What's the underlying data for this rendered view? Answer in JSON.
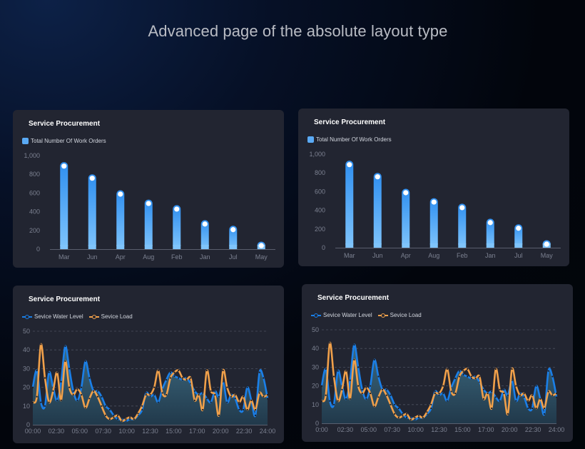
{
  "page": {
    "title": "Advanced page of the absolute layout type"
  },
  "panels": [
    {
      "title": "Service Procurement",
      "legend": [
        "Total Number Of Work Orders"
      ],
      "chart_data": {
        "type": "bar",
        "categories": [
          "Mar",
          "Jun",
          "Apr",
          "Aug",
          "Feb",
          "Jan",
          "Jul",
          "May"
        ],
        "series": [
          {
            "name": "Total Number Of Work Orders",
            "values": [
              930,
              800,
              630,
              530,
              470,
              310,
              250,
              80
            ]
          }
        ],
        "ylim": [
          0,
          1000
        ],
        "yticks": [
          "0",
          "200",
          "400",
          "600",
          "800",
          "1,000"
        ],
        "colors": {
          "bar_top": "#2f8ff0",
          "bar_bottom": "#7fc4fb",
          "marker": "#ffffff"
        }
      }
    },
    {
      "title": "Service Procurement",
      "legend": [
        "Total Number Of Work Orders"
      ],
      "chart_data": {
        "type": "bar",
        "categories": [
          "Mar",
          "Jun",
          "Apr",
          "Aug",
          "Feb",
          "Jan",
          "Jul",
          "May"
        ],
        "series": [
          {
            "name": "Total Number Of Work Orders",
            "values": [
              930,
              800,
              630,
              530,
              470,
              310,
              250,
              80
            ]
          }
        ],
        "ylim": [
          0,
          1000
        ],
        "yticks": [
          "0",
          "200",
          "400",
          "600",
          "800",
          "1,000"
        ],
        "colors": {
          "bar_top": "#2f8ff0",
          "bar_bottom": "#7fc4fb",
          "marker": "#ffffff"
        }
      }
    },
    {
      "title": "Service Procurement",
      "legend": [
        "Sevice Water Level",
        "Sevice Load"
      ],
      "chart_data": {
        "type": "line",
        "xticks": [
          "00:00",
          "02:30",
          "05:00",
          "07:30",
          "10:00",
          "12:30",
          "15:00",
          "17:00",
          "20:00",
          "22:30",
          "24:00"
        ],
        "ylim": [
          0,
          50
        ],
        "yticks": [
          "0",
          "10",
          "20",
          "30",
          "40",
          "50"
        ],
        "series": [
          {
            "name": "Sevice Water Level",
            "color": "#1a7fe8",
            "area": true,
            "values": [
              20,
              29,
              12,
              10,
              28,
              20,
              13,
              23,
              42,
              30,
              18,
              13,
              20,
              34,
              25,
              18,
              18,
              15,
              10,
              8,
              5,
              3,
              3,
              2,
              3,
              3,
              5,
              8,
              17,
              15,
              16,
              12,
              19,
              24,
              28,
              26,
              25,
              24,
              25,
              22,
              18,
              16,
              17,
              14,
              12,
              18,
              15,
              23,
              12,
              16,
              14,
              8,
              8,
              20,
              13,
              5,
              28,
              25,
              14
            ]
          },
          {
            "name": "Sevice Load",
            "color": "#f0a04a",
            "area": false,
            "values": [
              12,
              15,
              43,
              25,
              12,
              18,
              28,
              13,
              34,
              20,
              16,
              19,
              16,
              9,
              14,
              18,
              15,
              10,
              5,
              3,
              4,
              5,
              2,
              3,
              4,
              3,
              6,
              10,
              16,
              16,
              20,
              29,
              17,
              16,
              25,
              28,
              29,
              25,
              24,
              25,
              13,
              16,
              8,
              29,
              18,
              16,
              5,
              29,
              20,
              15,
              16,
              12,
              15,
              8,
              13,
              8,
              17,
              15,
              16
            ]
          }
        ]
      }
    },
    {
      "title": "Service Procurement",
      "legend": [
        "Sevice Water Level",
        "Sevice Load"
      ],
      "chart_data": {
        "type": "line",
        "xticks": [
          "0:00",
          "02:30",
          "05:00",
          "07:30",
          "10:00",
          "12:30",
          "15:00",
          "17:00",
          "20:00",
          "22:30",
          "24:00"
        ],
        "ylim": [
          0,
          50
        ],
        "yticks": [
          "0",
          "10",
          "20",
          "30",
          "40",
          "50"
        ],
        "series": [
          {
            "name": "Sevice Water Level",
            "color": "#1a7fe8",
            "area": true,
            "values": [
              20,
              29,
              12,
              10,
              28,
              20,
              13,
              23,
              42,
              30,
              18,
              13,
              20,
              34,
              25,
              18,
              18,
              15,
              10,
              8,
              5,
              3,
              3,
              2,
              3,
              3,
              5,
              8,
              17,
              15,
              16,
              12,
              19,
              24,
              28,
              26,
              25,
              24,
              25,
              22,
              18,
              16,
              17,
              14,
              12,
              18,
              15,
              23,
              12,
              16,
              14,
              8,
              8,
              20,
              13,
              5,
              28,
              25,
              14
            ]
          },
          {
            "name": "Sevice Load",
            "color": "#f0a04a",
            "area": false,
            "values": [
              12,
              15,
              43,
              25,
              12,
              18,
              28,
              13,
              34,
              20,
              16,
              19,
              16,
              9,
              14,
              18,
              15,
              10,
              5,
              3,
              4,
              5,
              2,
              3,
              4,
              3,
              6,
              10,
              16,
              16,
              20,
              29,
              17,
              16,
              25,
              28,
              29,
              25,
              24,
              25,
              13,
              16,
              8,
              29,
              18,
              16,
              5,
              29,
              20,
              15,
              16,
              12,
              15,
              8,
              13,
              8,
              17,
              15,
              16
            ]
          }
        ]
      }
    }
  ]
}
